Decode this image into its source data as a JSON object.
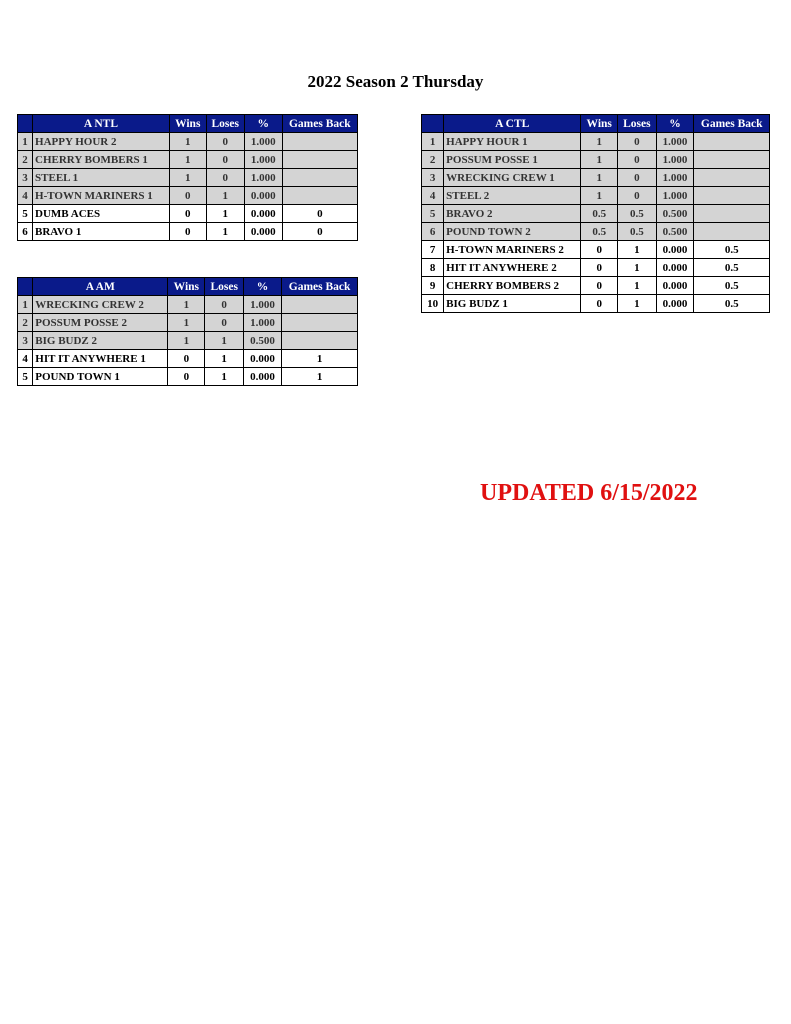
{
  "title": "2022 Season 2 Thursday",
  "updated": "UPDATED 6/15/2022",
  "columns": [
    "Wins",
    "Loses",
    "%",
    "Games Back"
  ],
  "tables": [
    {
      "division": "A NTL",
      "rows": [
        {
          "rank": "1",
          "team": "HAPPY HOUR 2",
          "wins": "1",
          "loses": "0",
          "pct": "1.000",
          "gb": "",
          "highlight": false
        },
        {
          "rank": "2",
          "team": "CHERRY BOMBERS 1",
          "wins": "1",
          "loses": "0",
          "pct": "1.000",
          "gb": "",
          "highlight": false
        },
        {
          "rank": "3",
          "team": "STEEL 1",
          "wins": "1",
          "loses": "0",
          "pct": "1.000",
          "gb": "",
          "highlight": false
        },
        {
          "rank": "4",
          "team": "H-TOWN MARINERS 1",
          "wins": "0",
          "loses": "1",
          "pct": "0.000",
          "gb": "",
          "highlight": false
        },
        {
          "rank": "5",
          "team": "DUMB ACES",
          "wins": "0",
          "loses": "1",
          "pct": "0.000",
          "gb": "0",
          "highlight": true
        },
        {
          "rank": "6",
          "team": "BRAVO 1",
          "wins": "0",
          "loses": "1",
          "pct": "0.000",
          "gb": "0",
          "highlight": true
        }
      ]
    },
    {
      "division": "A AM",
      "rows": [
        {
          "rank": "1",
          "team": "WRECKING CREW 2",
          "wins": "1",
          "loses": "0",
          "pct": "1.000",
          "gb": "",
          "highlight": false
        },
        {
          "rank": "2",
          "team": "POSSUM POSSE 2",
          "wins": "1",
          "loses": "0",
          "pct": "1.000",
          "gb": "",
          "highlight": false
        },
        {
          "rank": "3",
          "team": "BIG BUDZ 2",
          "wins": "1",
          "loses": "1",
          "pct": "0.500",
          "gb": "",
          "highlight": false
        },
        {
          "rank": "4",
          "team": "HIT IT ANYWHERE 1",
          "wins": "0",
          "loses": "1",
          "pct": "0.000",
          "gb": "1",
          "highlight": true
        },
        {
          "rank": "5",
          "team": "POUND TOWN 1",
          "wins": "0",
          "loses": "1",
          "pct": "0.000",
          "gb": "1",
          "highlight": true
        }
      ]
    },
    {
      "division": "A CTL",
      "rows": [
        {
          "rank": "1",
          "team": "HAPPY HOUR 1",
          "wins": "1",
          "loses": "0",
          "pct": "1.000",
          "gb": "",
          "highlight": false
        },
        {
          "rank": "2",
          "team": "POSSUM POSSE 1",
          "wins": "1",
          "loses": "0",
          "pct": "1.000",
          "gb": "",
          "highlight": false
        },
        {
          "rank": "3",
          "team": "WRECKING CREW 1",
          "wins": "1",
          "loses": "0",
          "pct": "1.000",
          "gb": "",
          "highlight": false
        },
        {
          "rank": "4",
          "team": "STEEL 2",
          "wins": "1",
          "loses": "0",
          "pct": "1.000",
          "gb": "",
          "highlight": false
        },
        {
          "rank": "5",
          "team": "BRAVO 2",
          "wins": "0.5",
          "loses": "0.5",
          "pct": "0.500",
          "gb": "",
          "highlight": false
        },
        {
          "rank": "6",
          "team": "POUND TOWN 2",
          "wins": "0.5",
          "loses": "0.5",
          "pct": "0.500",
          "gb": "",
          "highlight": false
        },
        {
          "rank": "7",
          "team": "H-TOWN MARINERS 2",
          "wins": "0",
          "loses": "1",
          "pct": "0.000",
          "gb": "0.5",
          "highlight": true
        },
        {
          "rank": "8",
          "team": "HIT IT ANYWHERE 2",
          "wins": "0",
          "loses": "1",
          "pct": "0.000",
          "gb": "0.5",
          "highlight": true
        },
        {
          "rank": "9",
          "team": "CHERRY BOMBERS 2",
          "wins": "0",
          "loses": "1",
          "pct": "0.000",
          "gb": "0.5",
          "highlight": true
        },
        {
          "rank": "10",
          "team": "BIG BUDZ 1",
          "wins": "0",
          "loses": "1",
          "pct": "0.000",
          "gb": "0.5",
          "highlight": true
        }
      ]
    }
  ]
}
